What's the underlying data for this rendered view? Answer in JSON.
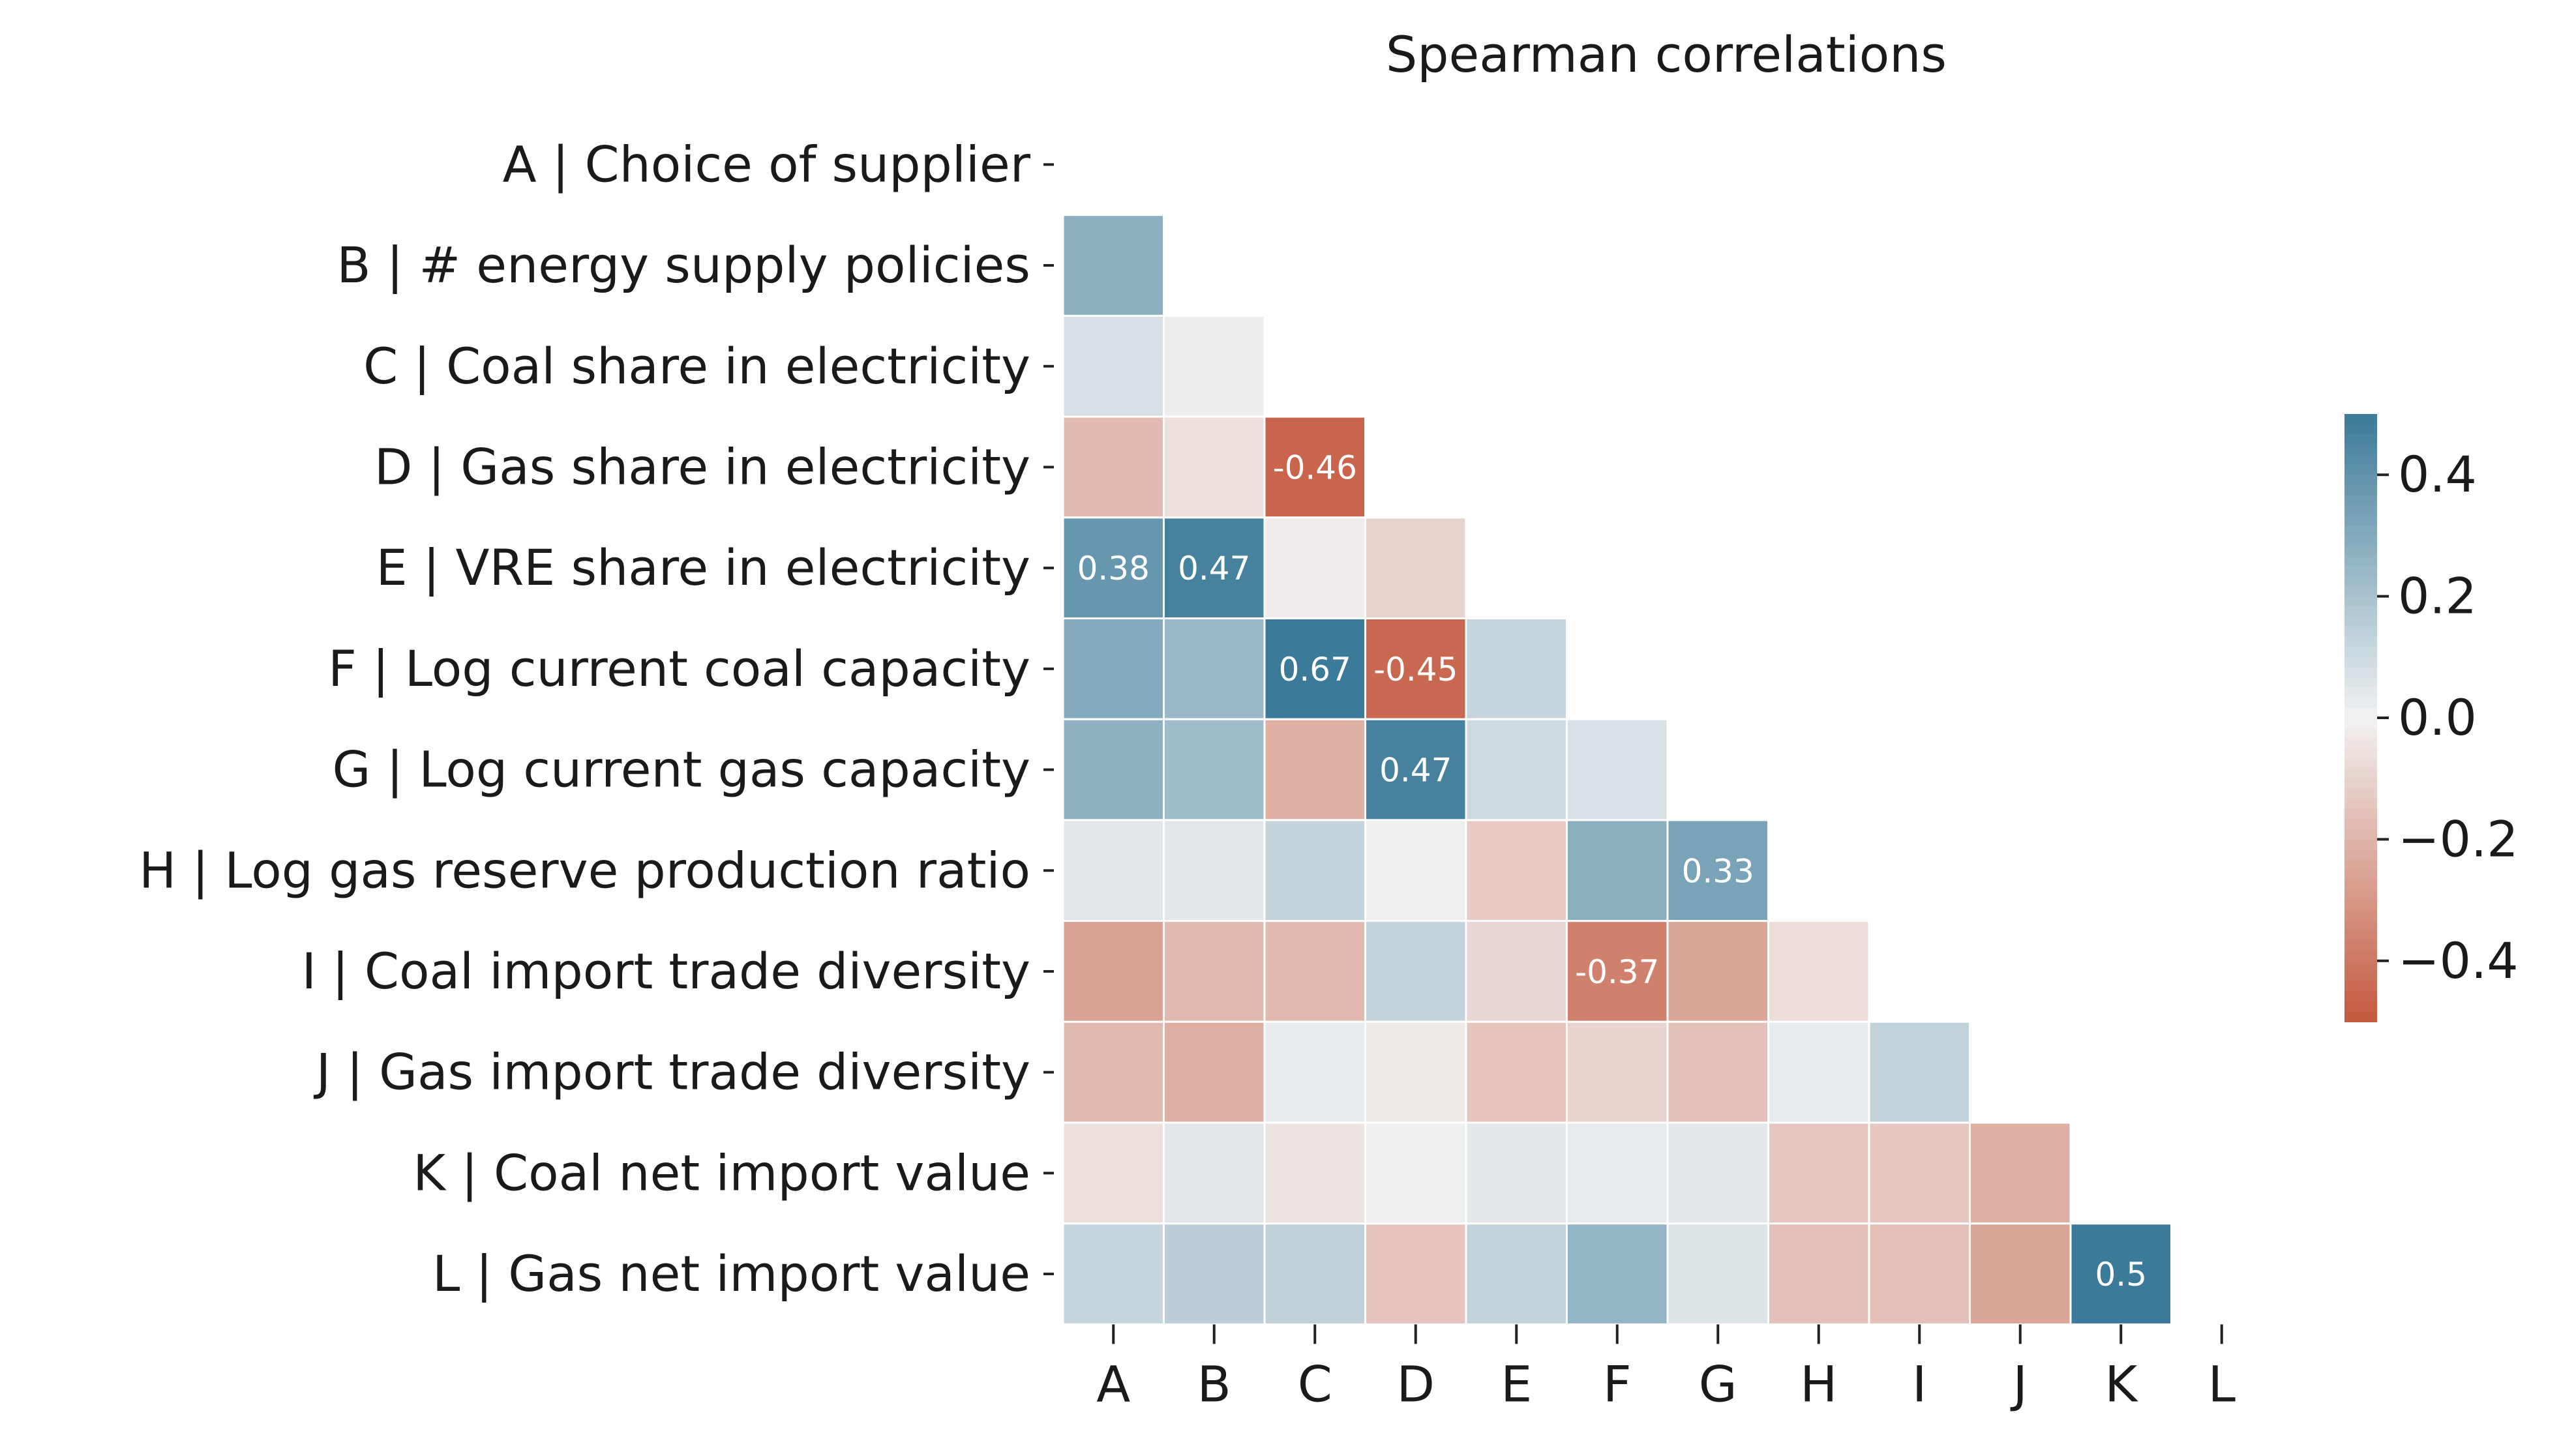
{
  "chart_data": {
    "type": "heatmap",
    "title": "Spearman correlations",
    "row_labels": [
      "A | Choice of supplier",
      "B | # energy supply policies",
      "C | Coal share in electricity",
      "D | Gas share in electricity",
      "E | VRE share in electricity",
      "F | Log current coal capacity",
      "G | Log current gas capacity",
      "H | Log gas reserve production ratio",
      "I | Coal import trade diversity",
      "J | Gas import trade diversity",
      "K | Coal net import value",
      "L | Gas net import value"
    ],
    "col_labels": [
      "A",
      "B",
      "C",
      "D",
      "E",
      "F",
      "G",
      "H",
      "I",
      "J",
      "K",
      "L"
    ],
    "mask": "upper triangle including diagonal",
    "values": [
      [],
      [
        0.28
      ],
      [
        0.08,
        0.02
      ],
      [
        -0.18,
        -0.06,
        -0.46
      ],
      [
        0.38,
        0.47,
        -0.02,
        -0.1
      ],
      [
        0.3,
        0.24,
        0.67,
        -0.45,
        0.12
      ],
      [
        0.27,
        0.22,
        -0.22,
        0.47,
        0.1,
        0.07
      ],
      [
        0.05,
        0.05,
        0.13,
        0.01,
        -0.13,
        0.28,
        0.33
      ],
      [
        -0.26,
        -0.18,
        -0.18,
        0.13,
        -0.09,
        -0.37,
        -0.25,
        -0.07
      ],
      [
        -0.18,
        -0.22,
        0.03,
        -0.03,
        -0.15,
        -0.1,
        -0.16,
        0.03,
        0.13
      ],
      [
        -0.06,
        0.05,
        -0.05,
        0.01,
        0.04,
        0.03,
        0.04,
        -0.14,
        -0.14,
        -0.22
      ],
      [
        0.12,
        0.15,
        0.14,
        -0.15,
        0.13,
        0.26,
        0.06,
        -0.16,
        -0.16,
        -0.25,
        0.5
      ]
    ],
    "annotations": [
      {
        "row": 3,
        "col": 2,
        "text": "-0.46"
      },
      {
        "row": 4,
        "col": 0,
        "text": "0.38"
      },
      {
        "row": 4,
        "col": 1,
        "text": "0.47"
      },
      {
        "row": 5,
        "col": 2,
        "text": "0.67"
      },
      {
        "row": 5,
        "col": 3,
        "text": "-0.45"
      },
      {
        "row": 6,
        "col": 3,
        "text": "0.47"
      },
      {
        "row": 7,
        "col": 6,
        "text": "0.33"
      },
      {
        "row": 8,
        "col": 5,
        "text": "-0.37"
      },
      {
        "row": 11,
        "col": 10,
        "text": "0.5"
      }
    ],
    "colorbar": {
      "vmin": -0.5,
      "vmax": 0.5,
      "ticks": [
        0.4,
        0.2,
        0.0,
        -0.2,
        -0.4
      ],
      "tick_labels": [
        "0.4",
        "0.2",
        "0.0",
        "−0.2",
        "−0.4"
      ],
      "negative_color": "#c4593e",
      "neutral_color": "#f2f2f2",
      "positive_color": "#3b7a99"
    },
    "grid_line_color": "#ffffff",
    "annotation_text_color": "#ffffff"
  }
}
